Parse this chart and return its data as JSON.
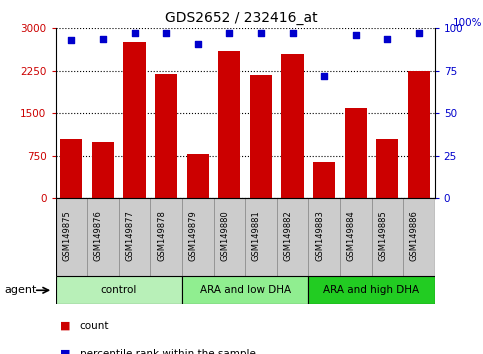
{
  "title": "GDS2652 / 232416_at",
  "samples": [
    "GSM149875",
    "GSM149876",
    "GSM149877",
    "GSM149878",
    "GSM149879",
    "GSM149880",
    "GSM149881",
    "GSM149882",
    "GSM149883",
    "GSM149884",
    "GSM149885",
    "GSM149886"
  ],
  "counts": [
    1050,
    1000,
    2750,
    2200,
    780,
    2600,
    2180,
    2550,
    640,
    1600,
    1050,
    2240
  ],
  "percentiles": [
    93,
    94,
    97,
    97,
    91,
    97,
    97,
    97,
    72,
    96,
    94,
    97
  ],
  "ylim_left": [
    0,
    3000
  ],
  "ylim_right": [
    0,
    100
  ],
  "yticks_left": [
    0,
    750,
    1500,
    2250,
    3000
  ],
  "yticks_right": [
    0,
    25,
    50,
    75,
    100
  ],
  "groups": [
    {
      "label": "control",
      "start": 0,
      "end": 4,
      "color": "#b8f0b8"
    },
    {
      "label": "ARA and low DHA",
      "start": 4,
      "end": 8,
      "color": "#90ee90"
    },
    {
      "label": "ARA and high DHA",
      "start": 8,
      "end": 12,
      "color": "#22cc22"
    }
  ],
  "bar_color": "#cc0000",
  "dot_color": "#0000cc",
  "tick_bg_color": "#cccccc",
  "plot_bg_color": "#ffffff",
  "legend_bar_color": "#cc0000",
  "legend_dot_color": "#0000cc",
  "agent_label": "agent",
  "legend_count": "count",
  "legend_pct": "percentile rank within the sample"
}
